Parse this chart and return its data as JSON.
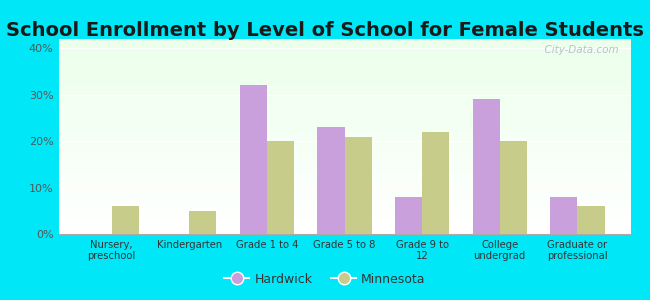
{
  "title": "School Enrollment by Level of School for Female Students",
  "categories": [
    "Nursery,\npreschool",
    "Kindergarten",
    "Grade 1 to 4",
    "Grade 5 to 8",
    "Grade 9 to\n12",
    "College\nundergrad",
    "Graduate or\nprofessional"
  ],
  "hardwick": [
    0,
    0,
    32,
    23,
    8,
    29,
    8
  ],
  "minnesota": [
    6,
    5,
    20,
    21,
    22,
    20,
    6
  ],
  "hardwick_color": "#c9a0dc",
  "minnesota_color": "#c8cc8a",
  "background_outer": "#00e8f8",
  "yticks": [
    0,
    10,
    20,
    30,
    40
  ],
  "ytick_labels": [
    "0%",
    "10%",
    "20%",
    "30%",
    "40%"
  ],
  "ylim": [
    0,
    42
  ],
  "bar_width": 0.35,
  "title_fontsize": 14,
  "legend_labels": [
    "Hardwick",
    "Minnesota"
  ],
  "watermark": "  City-Data.com"
}
